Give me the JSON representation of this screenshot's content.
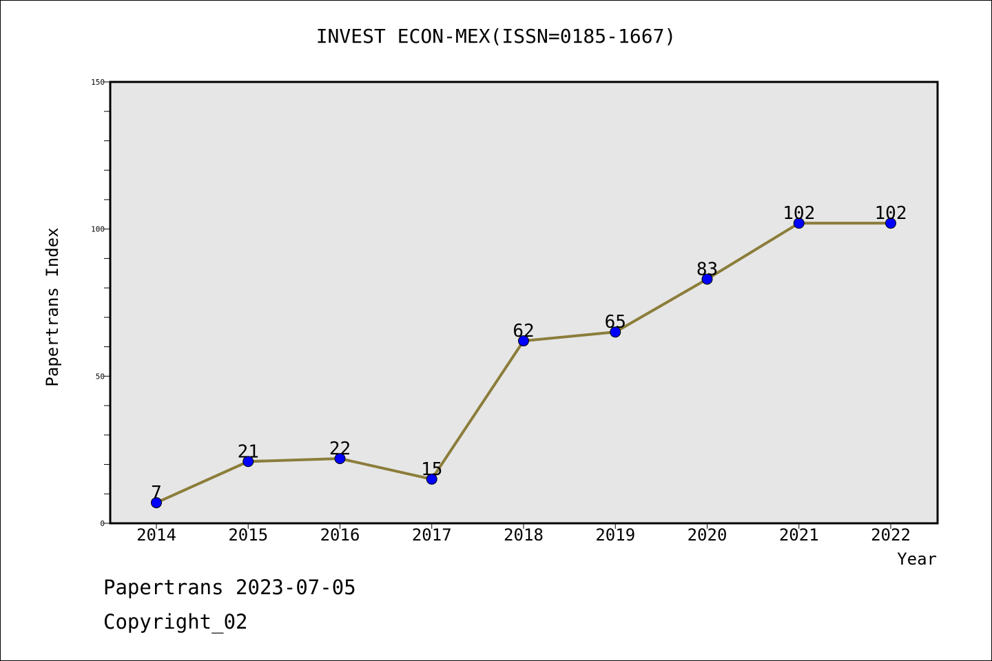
{
  "chart_data": {
    "type": "line",
    "title": "INVEST ECON-MEX(ISSN=0185-1667)",
    "xlabel": "Year",
    "ylabel": "Papertrans Index",
    "categories": [
      "2014",
      "2015",
      "2016",
      "2017",
      "2018",
      "2019",
      "2020",
      "2021",
      "2022"
    ],
    "series": [
      {
        "values": [
          7,
          21,
          22,
          15,
          62,
          65,
          83,
          102,
          102
        ]
      }
    ],
    "data_labels": [
      "7",
      "21",
      "22",
      "15",
      "62",
      "65",
      "83",
      "102",
      "102"
    ],
    "ylim": [
      0,
      150
    ],
    "yticks": [
      "0",
      "50",
      "100",
      "150"
    ],
    "grid": false,
    "colors": {
      "line": "#8B7D3A",
      "marker": "#0000FF",
      "plot_background": "#E6E6E6"
    }
  },
  "footer": {
    "line1": "Papertrans 2023-07-05",
    "line2": "Copyright_02"
  }
}
